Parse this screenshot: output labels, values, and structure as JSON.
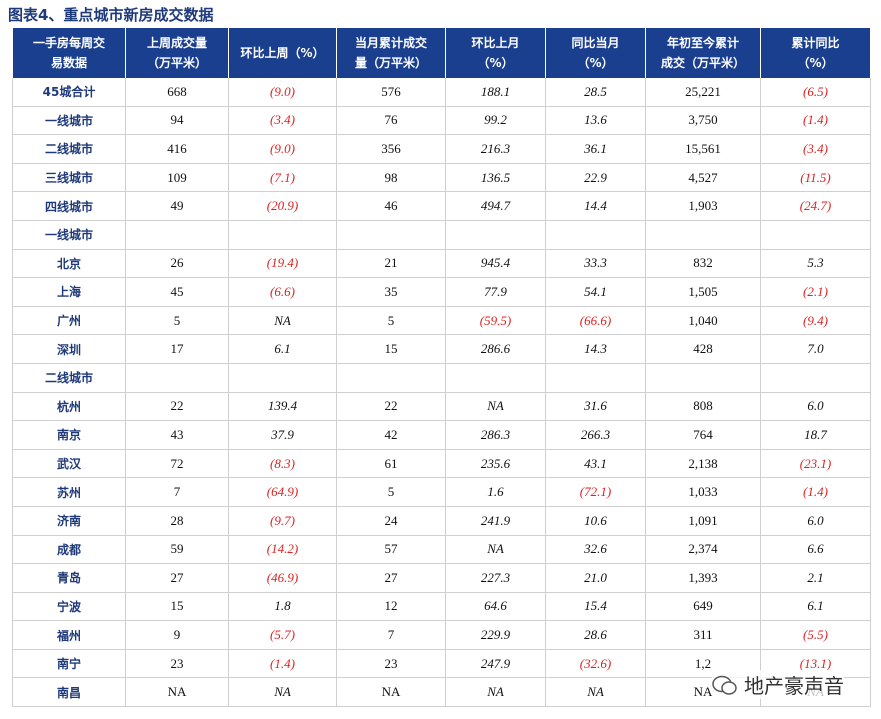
{
  "title": "图表4、重点城市新房成交数据",
  "table": {
    "header": [
      [
        "一手房每周交",
        "易数据"
      ],
      [
        "上周成交量",
        "（万平米）"
      ],
      [
        "环比上周（%）"
      ],
      [
        "当月累计成交",
        "量（万平米）"
      ],
      [
        "环比上月",
        "（%）"
      ],
      [
        "同比当月",
        "（%）"
      ],
      [
        "年初至今累计",
        "成交（万平米）"
      ],
      [
        "累计同比",
        "（%）"
      ]
    ],
    "rows": [
      {
        "label": "45城合计",
        "cells": [
          "668",
          "(9.0)",
          "576",
          "188.1",
          "28.5",
          "25,221",
          "(6.5)"
        ]
      },
      {
        "label": "一线城市",
        "cells": [
          "94",
          "(3.4)",
          "76",
          "99.2",
          "13.6",
          "3,750",
          "(1.4)"
        ]
      },
      {
        "label": "二线城市",
        "cells": [
          "416",
          "(9.0)",
          "356",
          "216.3",
          "36.1",
          "15,561",
          "(3.4)"
        ]
      },
      {
        "label": "三线城市",
        "cells": [
          "109",
          "(7.1)",
          "98",
          "136.5",
          "22.9",
          "4,527",
          "(11.5)"
        ]
      },
      {
        "label": "四线城市",
        "cells": [
          "49",
          "(20.9)",
          "46",
          "494.7",
          "14.4",
          "1,903",
          "(24.7)"
        ]
      },
      {
        "label": "一线城市"
      },
      {
        "label": "北京",
        "cells": [
          "26",
          "(19.4)",
          "21",
          "945.4",
          "33.3",
          "832",
          "5.3"
        ]
      },
      {
        "label": "上海",
        "cells": [
          "45",
          "(6.6)",
          "35",
          "77.9",
          "54.1",
          "1,505",
          "(2.1)"
        ]
      },
      {
        "label": "广州",
        "cells": [
          "5",
          "NA",
          "5",
          "(59.5)",
          "(66.6)",
          "1,040",
          "(9.4)"
        ]
      },
      {
        "label": "深圳",
        "cells": [
          "17",
          "6.1",
          "15",
          "286.6",
          "14.3",
          "428",
          "7.0"
        ]
      },
      {
        "label": "二线城市"
      },
      {
        "label": "杭州",
        "cells": [
          "22",
          "139.4",
          "22",
          "NA",
          "31.6",
          "808",
          "6.0"
        ]
      },
      {
        "label": "南京",
        "cells": [
          "43",
          "37.9",
          "42",
          "286.3",
          "266.3",
          "764",
          "18.7"
        ]
      },
      {
        "label": "武汉",
        "cells": [
          "72",
          "(8.3)",
          "61",
          "235.6",
          "43.1",
          "2,138",
          "(23.1)"
        ]
      },
      {
        "label": "苏州",
        "cells": [
          "7",
          "(64.9)",
          "5",
          "1.6",
          "(72.1)",
          "1,033",
          "(1.4)"
        ]
      },
      {
        "label": "济南",
        "cells": [
          "28",
          "(9.7)",
          "24",
          "241.9",
          "10.6",
          "1,091",
          "6.0"
        ]
      },
      {
        "label": "成都",
        "cells": [
          "59",
          "(14.2)",
          "57",
          "NA",
          "32.6",
          "2,374",
          "6.6"
        ]
      },
      {
        "label": "青岛",
        "cells": [
          "27",
          "(46.9)",
          "27",
          "227.3",
          "21.0",
          "1,393",
          "2.1"
        ]
      },
      {
        "label": "宁波",
        "cells": [
          "15",
          "1.8",
          "12",
          "64.6",
          "15.4",
          "649",
          "6.1"
        ]
      },
      {
        "label": "福州",
        "cells": [
          "9",
          "(5.7)",
          "7",
          "229.9",
          "28.6",
          "311",
          "(5.5)"
        ]
      },
      {
        "label": "南宁",
        "cells": [
          "23",
          "(1.4)",
          "23",
          "247.9",
          "(32.6)",
          "1,2",
          "(13.1)"
        ]
      },
      {
        "label": "南昌",
        "cells": [
          "NA",
          "NA",
          "NA",
          "NA",
          "NA",
          "NA",
          "NA"
        ]
      }
    ]
  },
  "watermark": "地产豪声音"
}
